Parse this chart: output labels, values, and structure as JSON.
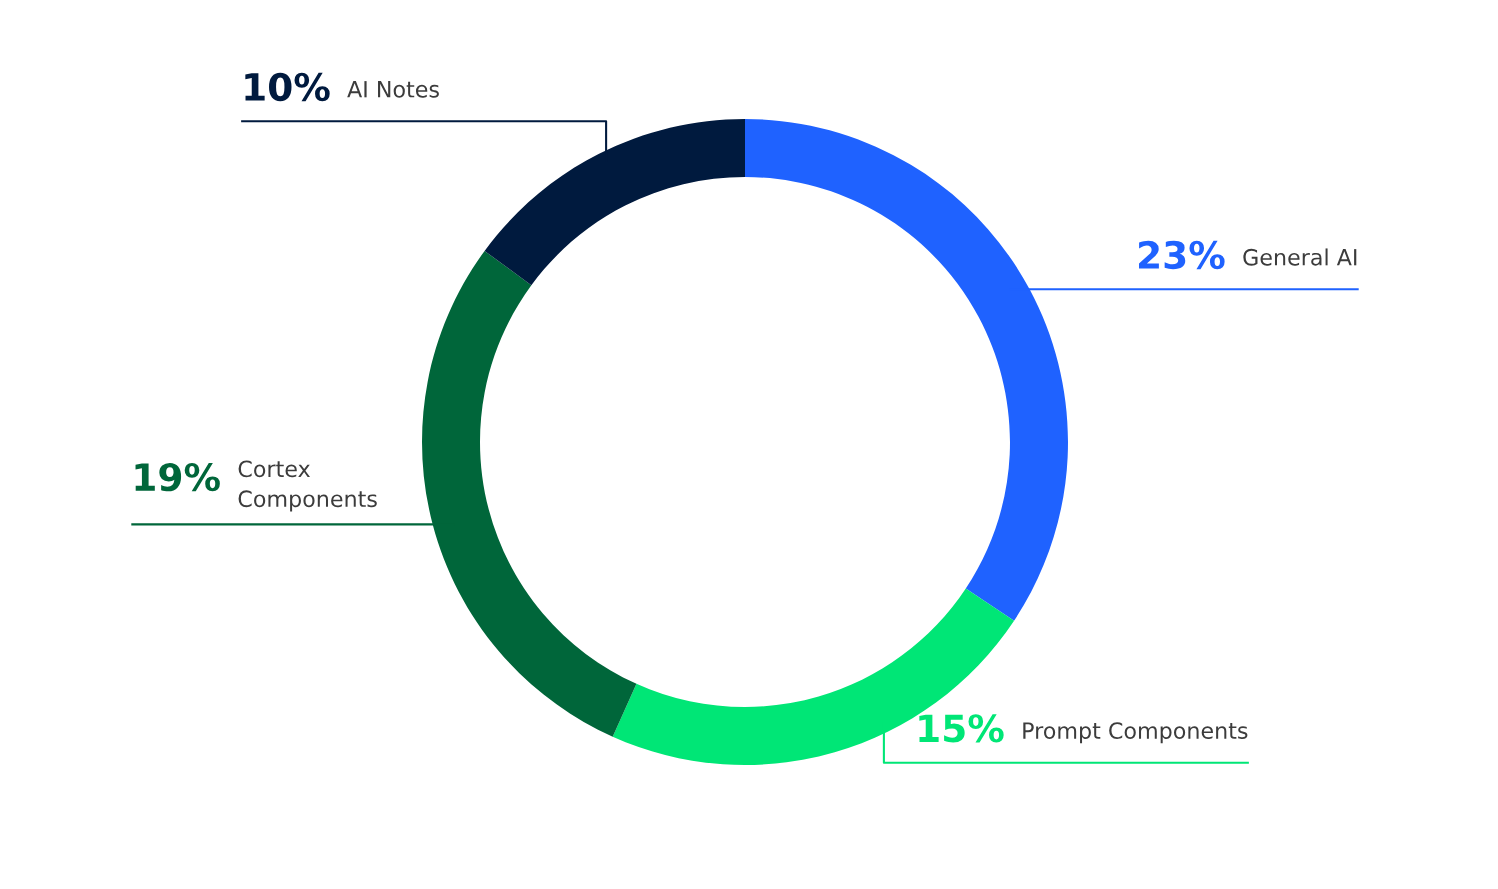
{
  "chart_data": {
    "type": "donut",
    "categories": [
      "General AI",
      "Prompt Components",
      "Cortex\nComponents",
      "AI Notes"
    ],
    "values": [
      23,
      15,
      19,
      10
    ],
    "colors": [
      "#1f62ff",
      "#00e676",
      "#00663a",
      "#001a3e"
    ],
    "value_labels": [
      "23%",
      "15%",
      "19%",
      "10%"
    ]
  }
}
